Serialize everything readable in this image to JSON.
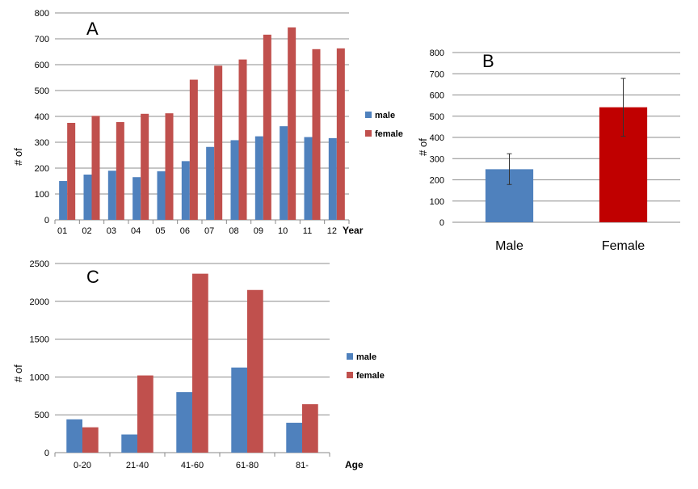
{
  "colors": {
    "male": "#4f81bd",
    "female": "#c0504d",
    "b_male": "#4f81bd",
    "b_female": "#c00000",
    "grid": "#8c8c8c"
  },
  "chart_data": [
    {
      "id": "A",
      "type": "bar",
      "panel_label": "A",
      "categories": [
        "01",
        "02",
        "03",
        "04",
        "05",
        "06",
        "07",
        "08",
        "09",
        "10",
        "11",
        "12"
      ],
      "series": [
        {
          "name": "male",
          "values": [
            150,
            175,
            190,
            165,
            188,
            227,
            282,
            308,
            323,
            362,
            320,
            316
          ]
        },
        {
          "name": "female",
          "values": [
            375,
            402,
            378,
            410,
            412,
            542,
            596,
            620,
            716,
            744,
            660,
            663
          ]
        }
      ],
      "xlabel": "Year",
      "ylabel": "# of",
      "ylim": [
        0,
        800
      ],
      "yticks": [
        0,
        100,
        200,
        300,
        400,
        500,
        600,
        700,
        800
      ],
      "grid": true,
      "legend": "right"
    },
    {
      "id": "B",
      "type": "bar",
      "panel_label": "B",
      "categories": [
        "Male",
        "Female"
      ],
      "values": [
        250,
        542
      ],
      "error_low": [
        178,
        405
      ],
      "error_high": [
        323,
        678
      ],
      "ylabel": "# of",
      "ylim": [
        0,
        800
      ],
      "yticks": [
        0,
        100,
        200,
        300,
        400,
        500,
        600,
        700,
        800
      ],
      "grid": true
    },
    {
      "id": "C",
      "type": "bar",
      "panel_label": "C",
      "categories": [
        "0-20",
        "21-40",
        "41-60",
        "61-80",
        "81-"
      ],
      "series": [
        {
          "name": "male",
          "values": [
            440,
            240,
            800,
            1125,
            395
          ]
        },
        {
          "name": "female",
          "values": [
            335,
            1020,
            2365,
            2150,
            640
          ]
        }
      ],
      "xlabel": "Age",
      "ylabel": "# of",
      "ylim": [
        0,
        2500
      ],
      "yticks": [
        0,
        500,
        1000,
        1500,
        2000,
        2500
      ],
      "grid": true,
      "legend": "right"
    }
  ]
}
